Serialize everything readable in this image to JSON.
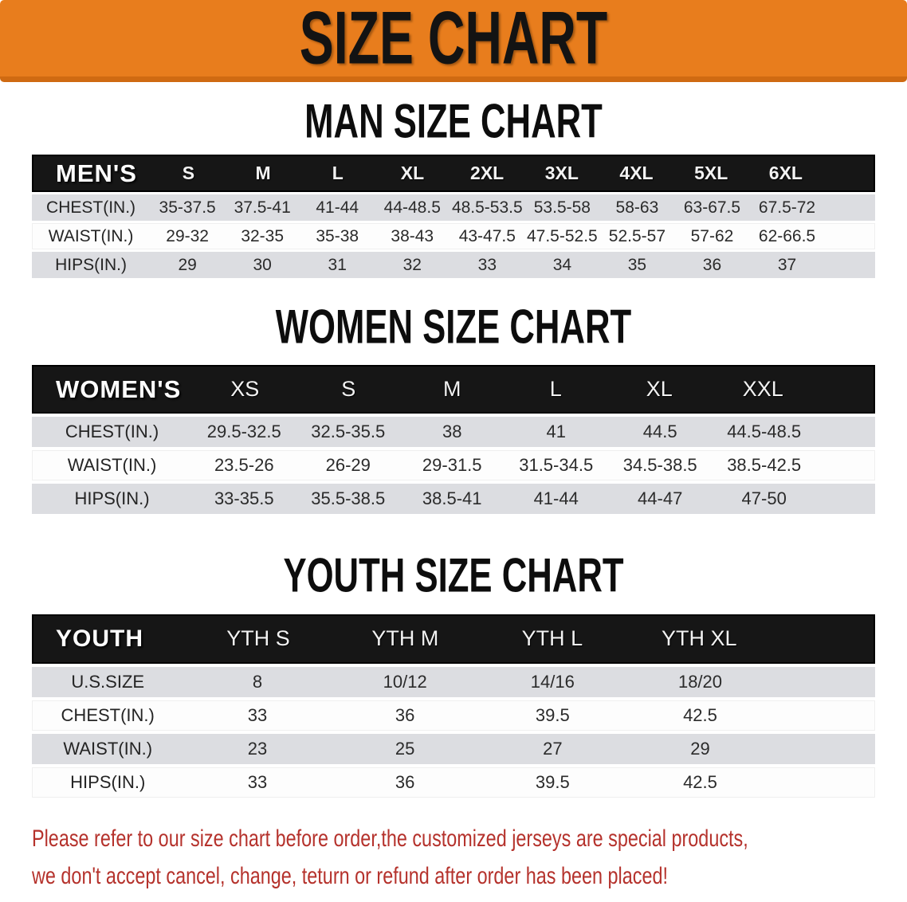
{
  "banner": {
    "title": "SIZE CHART",
    "bg_color": "#e87d1d"
  },
  "sections": [
    {
      "id": "men",
      "title": "MAN SIZE CHART",
      "group_label": "MEN'S",
      "columns": [
        "S",
        "M",
        "L",
        "XL",
        "2XL",
        "3XL",
        "4XL",
        "5XL",
        "6XL"
      ],
      "rows": [
        {
          "label": "CHEST(IN.)",
          "values": [
            "35-37.5",
            "37.5-41",
            "41-44",
            "44-48.5",
            "48.5-53.5",
            "53.5-58",
            "58-63",
            "63-67.5",
            "67.5-72"
          ]
        },
        {
          "label": "WAIST(IN.)",
          "values": [
            "29-32",
            "32-35",
            "35-38",
            "38-43",
            "43-47.5",
            "47.5-52.5",
            "52.5-57",
            "57-62",
            "62-66.5"
          ]
        },
        {
          "label": "HIPS(IN.)",
          "values": [
            "29",
            "30",
            "31",
            "32",
            "33",
            "34",
            "35",
            "36",
            "37"
          ]
        }
      ]
    },
    {
      "id": "women",
      "title": "WOMEN SIZE CHART",
      "group_label": "WOMEN'S",
      "columns": [
        "XS",
        "S",
        "M",
        "L",
        "XL",
        "XXL"
      ],
      "rows": [
        {
          "label": "CHEST(IN.)",
          "values": [
            "29.5-32.5",
            "32.5-35.5",
            "38",
            "41",
            "44.5",
            "44.5-48.5"
          ]
        },
        {
          "label": "WAIST(IN.)",
          "values": [
            "23.5-26",
            "26-29",
            "29-31.5",
            "31.5-34.5",
            "34.5-38.5",
            "38.5-42.5"
          ]
        },
        {
          "label": "HIPS(IN.)",
          "values": [
            "33-35.5",
            "35.5-38.5",
            "38.5-41",
            "41-44",
            "44-47",
            "47-50"
          ]
        }
      ]
    },
    {
      "id": "youth",
      "title": "YOUTH SIZE CHART",
      "group_label": "YOUTH",
      "columns": [
        "YTH S",
        "YTH M",
        "YTH L",
        "YTH XL"
      ],
      "rows": [
        {
          "label": "U.S.SIZE",
          "values": [
            "8",
            "10/12",
            "14/16",
            "18/20"
          ]
        },
        {
          "label": "CHEST(IN.)",
          "values": [
            "33",
            "36",
            "39.5",
            "42.5"
          ]
        },
        {
          "label": "WAIST(IN.)",
          "values": [
            "23",
            "25",
            "27",
            "29"
          ]
        },
        {
          "label": "HIPS(IN.)",
          "values": [
            "33",
            "36",
            "39.5",
            "42.5"
          ]
        }
      ]
    }
  ],
  "disclaimer": {
    "color": "#b5322c",
    "lines": [
      "Please refer to our size chart before order,the customized jerseys are special products,",
      "we don't accept cancel, change, teturn or refund after order has been placed!"
    ]
  }
}
